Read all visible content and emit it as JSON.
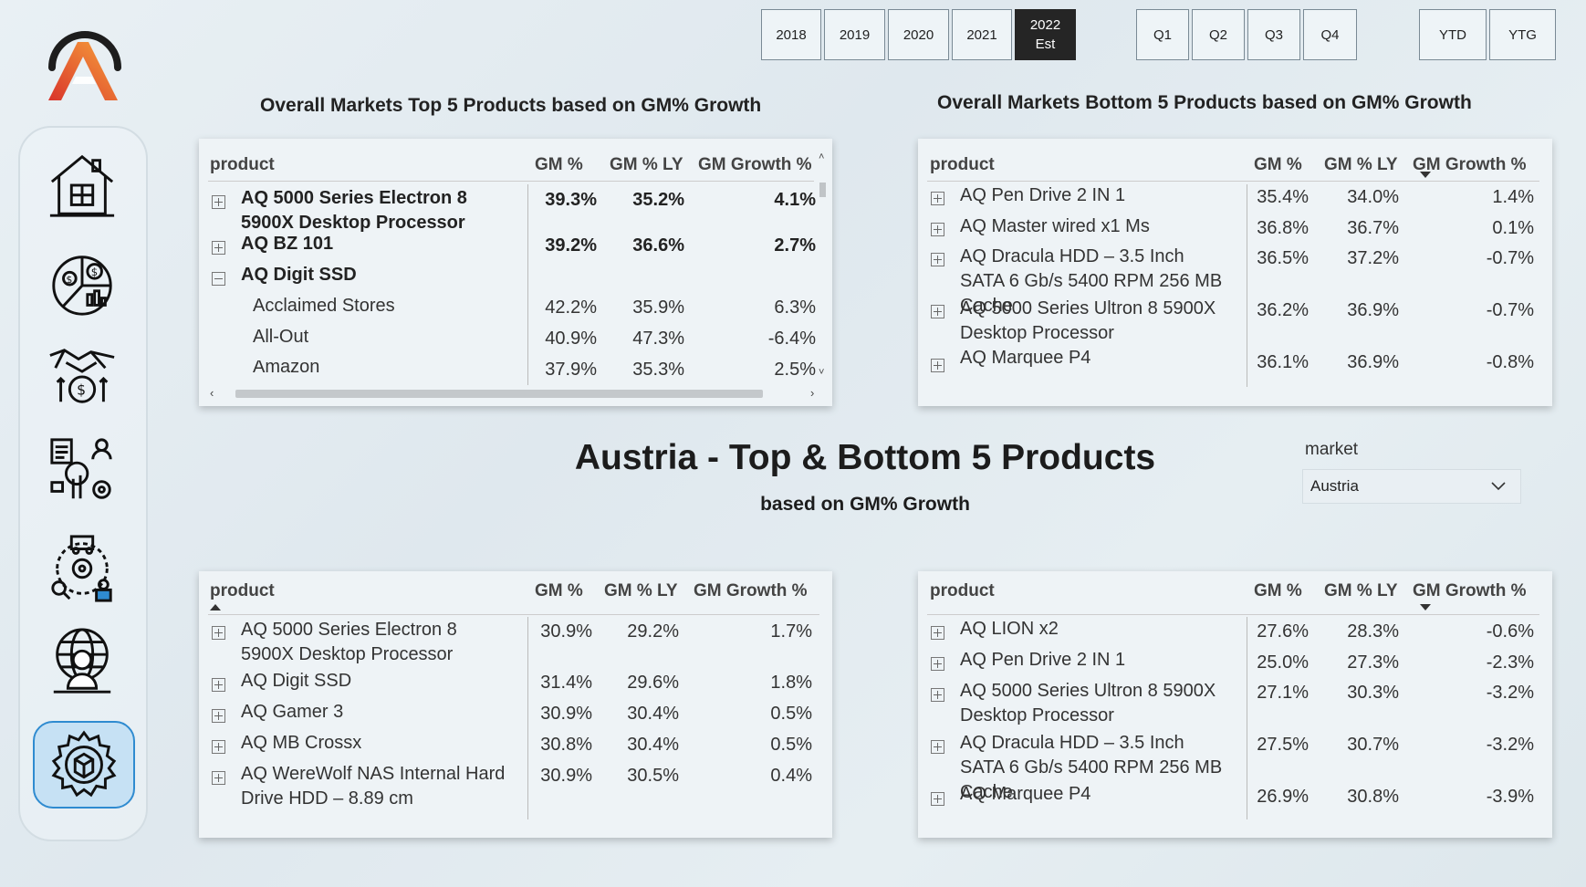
{
  "filters": {
    "years": [
      "2018",
      "2019",
      "2020",
      "2021",
      "2022\nEst"
    ],
    "selected_year": "2022\nEst",
    "quarters": [
      "Q1",
      "Q2",
      "Q3",
      "Q4"
    ],
    "periods": [
      "YTD",
      "YTG"
    ]
  },
  "titles": {
    "top_overall": "Overall Markets Top 5 Products based on GM% Growth",
    "bottom_overall": "Overall Markets Bottom 5 Products based on GM% Growth",
    "main": "Austria - Top & Bottom 5 Products",
    "sub": "based on GM% Growth"
  },
  "columns": {
    "product": "product",
    "gm": "GM %",
    "gm_ly": "GM % LY",
    "growth": "GM Growth %"
  },
  "market_slicer": {
    "label": "market",
    "value": "Austria"
  },
  "top_overall": [
    {
      "product": "AQ 5000 Series Electron 8 5900X Desktop Processor",
      "gm": "39.3%",
      "gm_ly": "35.2%",
      "growth": "4.1%"
    },
    {
      "product": "AQ BZ 101",
      "gm": "39.2%",
      "gm_ly": "36.6%",
      "growth": "2.7%"
    },
    {
      "product": "AQ Digit SSD",
      "gm": "",
      "gm_ly": "",
      "growth": ""
    },
    {
      "product": "Acclaimed Stores",
      "gm": "42.2%",
      "gm_ly": "35.9%",
      "growth": "6.3%"
    },
    {
      "product": "All-Out",
      "gm": "40.9%",
      "gm_ly": "47.3%",
      "growth": "-6.4%"
    },
    {
      "product": "Amazon",
      "gm": "37.9%",
      "gm_ly": "35.3%",
      "growth": "2.5%"
    }
  ],
  "bottom_overall": [
    {
      "product": "AQ Pen Drive 2 IN 1",
      "gm": "35.4%",
      "gm_ly": "34.0%",
      "growth": "1.4%"
    },
    {
      "product": "AQ Master wired x1 Ms",
      "gm": "36.8%",
      "gm_ly": "36.7%",
      "growth": "0.1%"
    },
    {
      "product": "AQ Dracula HDD – 3.5 Inch SATA 6 Gb/s 5400 RPM 256 MB Cache",
      "gm": "36.5%",
      "gm_ly": "37.2%",
      "growth": "-0.7%"
    },
    {
      "product": "AQ 5000 Series Ultron 8 5900X Desktop Processor",
      "gm": "36.2%",
      "gm_ly": "36.9%",
      "growth": "-0.7%"
    },
    {
      "product": "AQ Marquee P4",
      "gm": "36.1%",
      "gm_ly": "36.9%",
      "growth": "-0.8%"
    }
  ],
  "top_market": [
    {
      "product": "AQ 5000 Series Electron 8 5900X Desktop Processor",
      "gm": "30.9%",
      "gm_ly": "29.2%",
      "growth": "1.7%"
    },
    {
      "product": "AQ Digit SSD",
      "gm": "31.4%",
      "gm_ly": "29.6%",
      "growth": "1.8%"
    },
    {
      "product": "AQ Gamer 3",
      "gm": "30.9%",
      "gm_ly": "30.4%",
      "growth": "0.5%"
    },
    {
      "product": "AQ MB Crossx",
      "gm": "30.8%",
      "gm_ly": "30.4%",
      "growth": "0.5%"
    },
    {
      "product": "AQ WereWolf NAS Internal Hard Drive HDD – 8.89 cm",
      "gm": "30.9%",
      "gm_ly": "30.5%",
      "growth": "0.4%"
    }
  ],
  "bottom_market": [
    {
      "product": "AQ LION x2",
      "gm": "27.6%",
      "gm_ly": "28.3%",
      "growth": "-0.6%"
    },
    {
      "product": "AQ Pen Drive 2 IN 1",
      "gm": "25.0%",
      "gm_ly": "27.3%",
      "growth": "-2.3%"
    },
    {
      "product": "AQ 5000 Series Ultron 8 5900X Desktop Processor",
      "gm": "27.1%",
      "gm_ly": "30.3%",
      "growth": "-3.2%"
    },
    {
      "product": "AQ Dracula HDD – 3.5 Inch SATA 6 Gb/s 5400 RPM 256 MB Cache",
      "gm": "27.5%",
      "gm_ly": "30.7%",
      "growth": "-3.2%"
    },
    {
      "product": "AQ Marquee P4",
      "gm": "26.9%",
      "gm_ly": "30.8%",
      "growth": "-3.9%"
    }
  ],
  "nav_icons": [
    "home-icon",
    "finance-pie-icon",
    "deal-money-icon",
    "analytics-touch-icon",
    "supply-chain-icon",
    "global-user-icon",
    "product-gear-icon"
  ],
  "colors": {
    "accent": "#2f8bd0",
    "active_nav_bg": "#c6e1f4",
    "selected_filter": "#252525",
    "logo_orange": "#f0542d",
    "logo_dark": "#1d1d1d"
  }
}
